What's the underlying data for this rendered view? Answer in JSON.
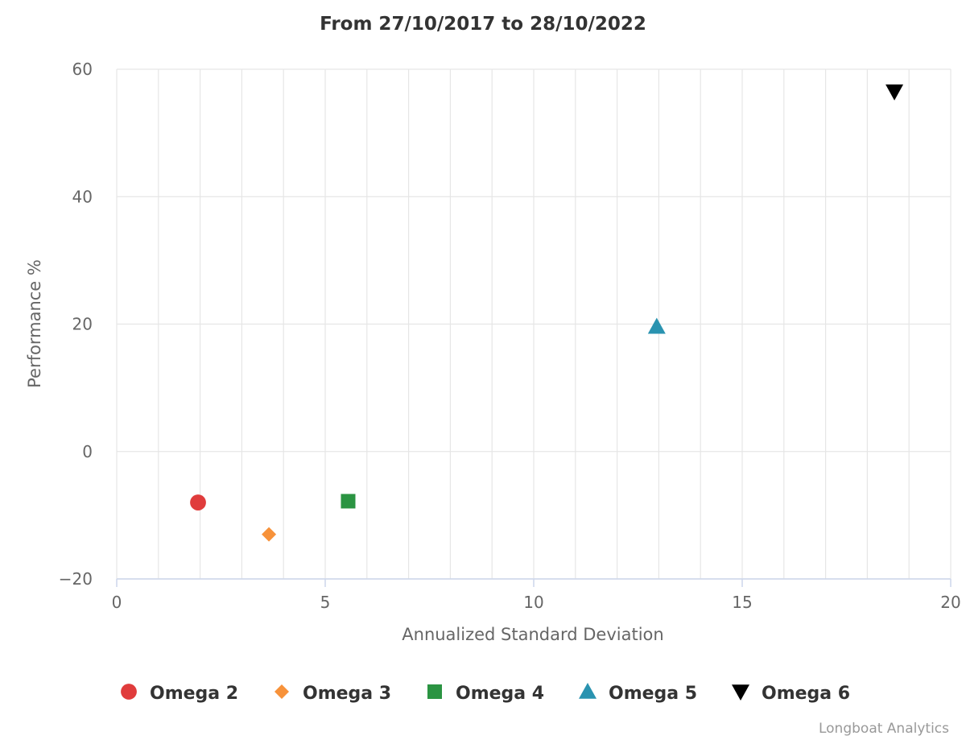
{
  "chart_data": {
    "type": "scatter",
    "title": "From 27/10/2017 to 28/10/2022",
    "xlabel": "Annualized Standard Deviation",
    "ylabel": "Performance %",
    "xlim": [
      0,
      20
    ],
    "ylim": [
      -20,
      60
    ],
    "x_ticks": [
      0,
      5,
      10,
      15,
      20
    ],
    "y_ticks": [
      -20,
      0,
      20,
      40,
      60
    ],
    "x_tick_labels": [
      "0",
      "5",
      "10",
      "15",
      "20"
    ],
    "y_tick_labels": [
      "−20",
      "0",
      "20",
      "40",
      "60"
    ],
    "x_minor_step": 1,
    "grid": true,
    "legend_position": "bottom",
    "series": [
      {
        "name": "Omega 2",
        "x": 1.95,
        "y": -8.0,
        "marker": "circle",
        "color": "#e03c3c"
      },
      {
        "name": "Omega 3",
        "x": 3.65,
        "y": -13.0,
        "marker": "diamond",
        "color": "#f7923a"
      },
      {
        "name": "Omega 4",
        "x": 5.55,
        "y": -7.8,
        "marker": "square",
        "color": "#2b9442"
      },
      {
        "name": "Omega 5",
        "x": 12.95,
        "y": 19.6,
        "marker": "triangle-up",
        "color": "#2a93b0"
      },
      {
        "name": "Omega 6",
        "x": 18.65,
        "y": 56.5,
        "marker": "triangle-down",
        "color": "#000000"
      }
    ]
  },
  "credit": "Longboat Analytics"
}
